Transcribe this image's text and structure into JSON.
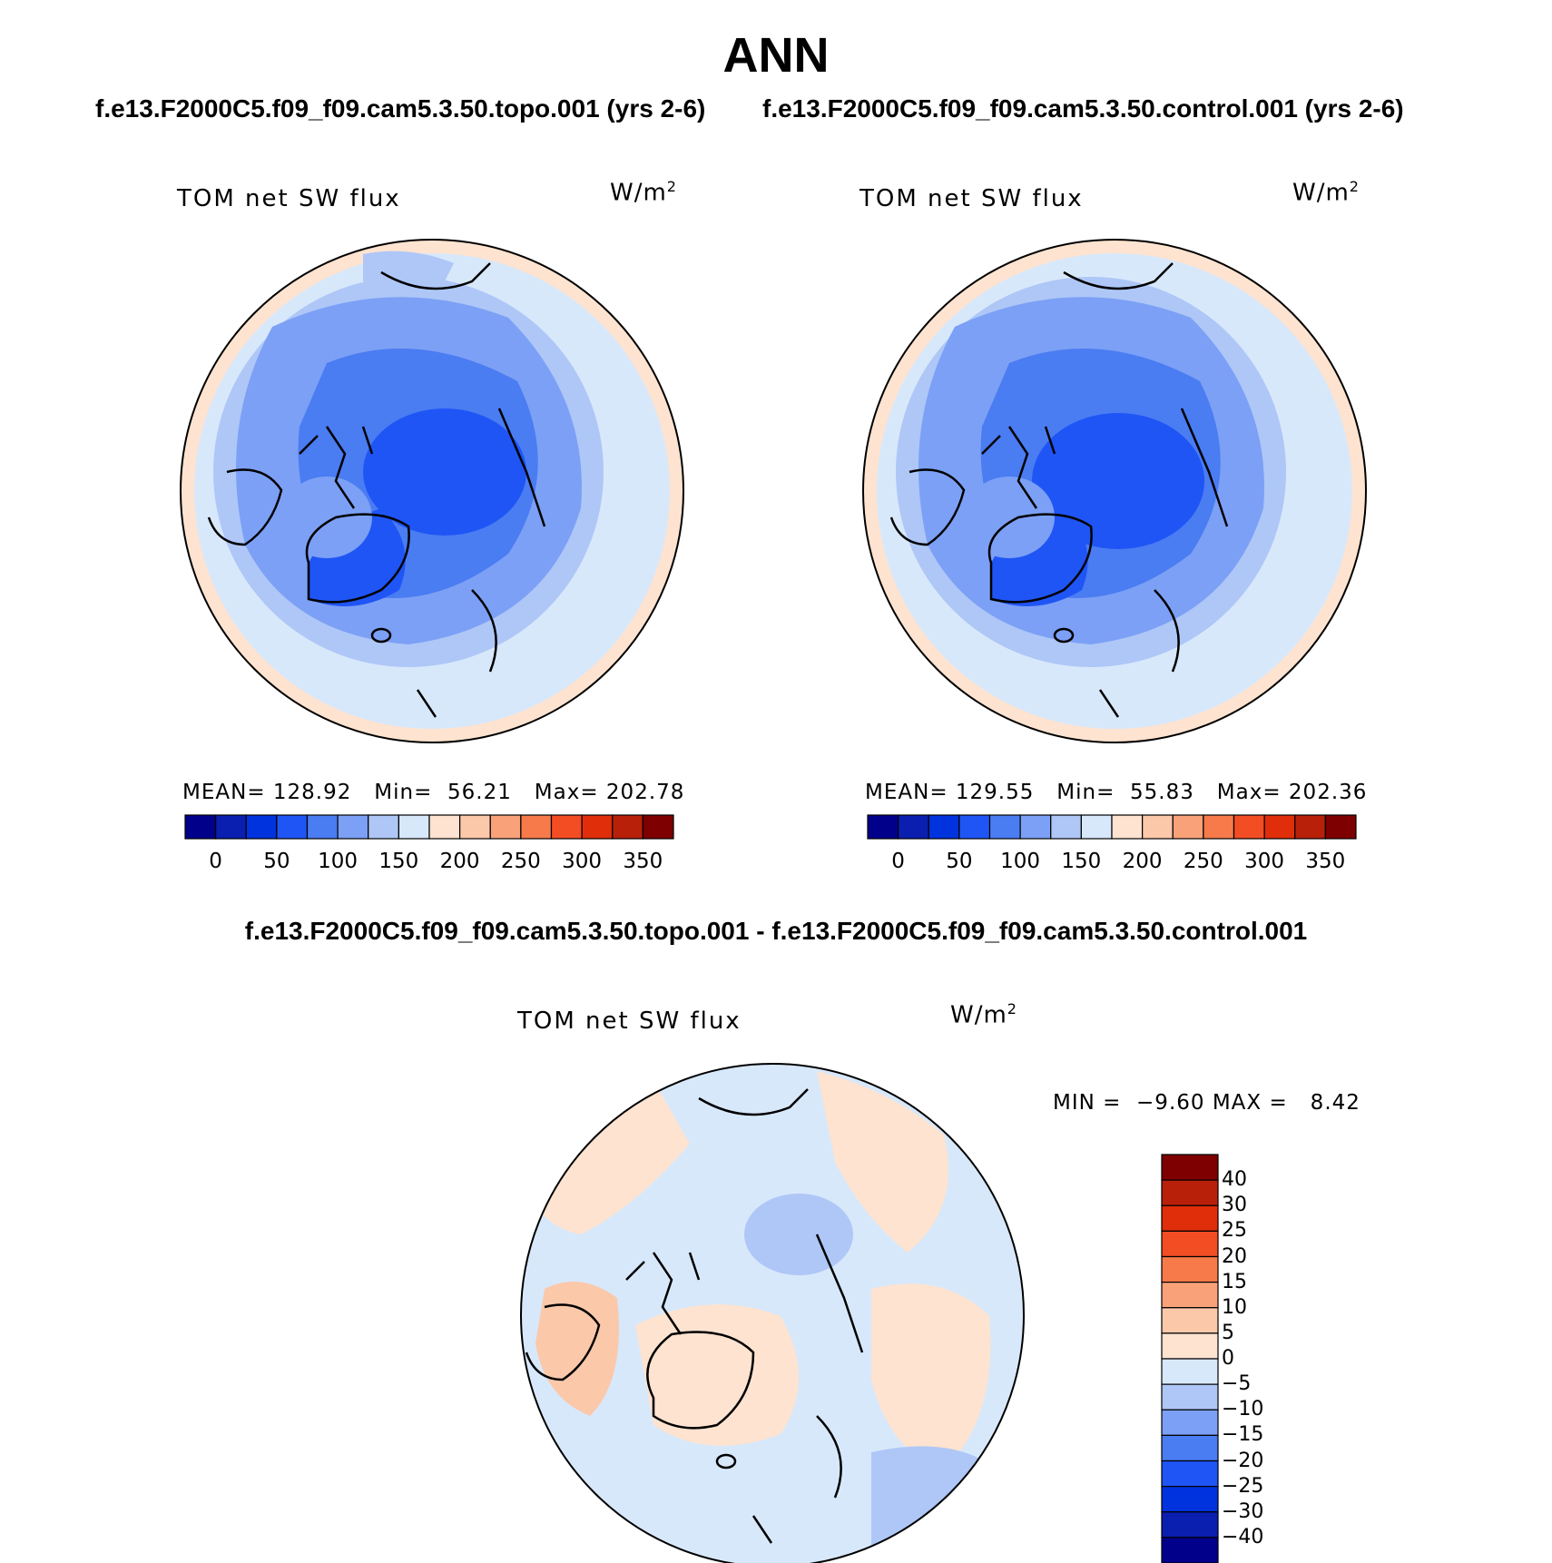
{
  "title": "ANN",
  "panels": [
    {
      "run_title": "f.e13.F2000C5.f09_f09.cam5.3.50.topo.001 (yrs 2-6)",
      "variable": "TOM net SW flux",
      "units": "W/m",
      "units_sup": "2",
      "stats": "MEAN= 128.92   Min=  56.21   Max= 202.78",
      "colorbar_ticks": [
        "0",
        "50",
        "100",
        "150",
        "200",
        "250",
        "300",
        "350"
      ]
    },
    {
      "run_title": "f.e13.F2000C5.f09_f09.cam5.3.50.control.001 (yrs 2-6)",
      "variable": "TOM net SW flux",
      "units": "W/m",
      "units_sup": "2",
      "stats": "MEAN= 129.55   Min=  55.83   Max= 202.36",
      "colorbar_ticks": [
        "0",
        "50",
        "100",
        "150",
        "200",
        "250",
        "300",
        "350"
      ]
    }
  ],
  "difference": {
    "title": "f.e13.F2000C5.f09_f09.cam5.3.50.topo.001 - f.e13.F2000C5.f09_f09.cam5.3.50.control.001",
    "variable": "TOM net SW flux",
    "units": "W/m",
    "units_sup": "2",
    "stats": "MIN =  −9.60 MAX =   8.42",
    "colorbar_ticks": [
      "40",
      "30",
      "25",
      "20",
      "15",
      "10",
      "5",
      "0",
      "−5",
      "−10",
      "−15",
      "−20",
      "−25",
      "−30",
      "−40"
    ]
  },
  "colors": {
    "abs_scale": [
      "#00008b",
      "#0a1fb0",
      "#0033dd",
      "#1f55f5",
      "#4a7cf2",
      "#7ca0f5",
      "#aec7f7",
      "#d8e8fb",
      "#fde3d0",
      "#fbc8aa",
      "#f9a27a",
      "#f77a4a",
      "#f34d24",
      "#e02e0a",
      "#b8200a",
      "#7e0000"
    ],
    "diff_scale": [
      "#7e0000",
      "#b8200a",
      "#e02e0a",
      "#f34d24",
      "#f77a4a",
      "#f9a27a",
      "#fbc8aa",
      "#fde3d0",
      "#d8e8fb",
      "#aec7f7",
      "#7ca0f5",
      "#4a7cf2",
      "#1f55f5",
      "#0033dd",
      "#0a1fb0",
      "#00008b"
    ]
  }
}
